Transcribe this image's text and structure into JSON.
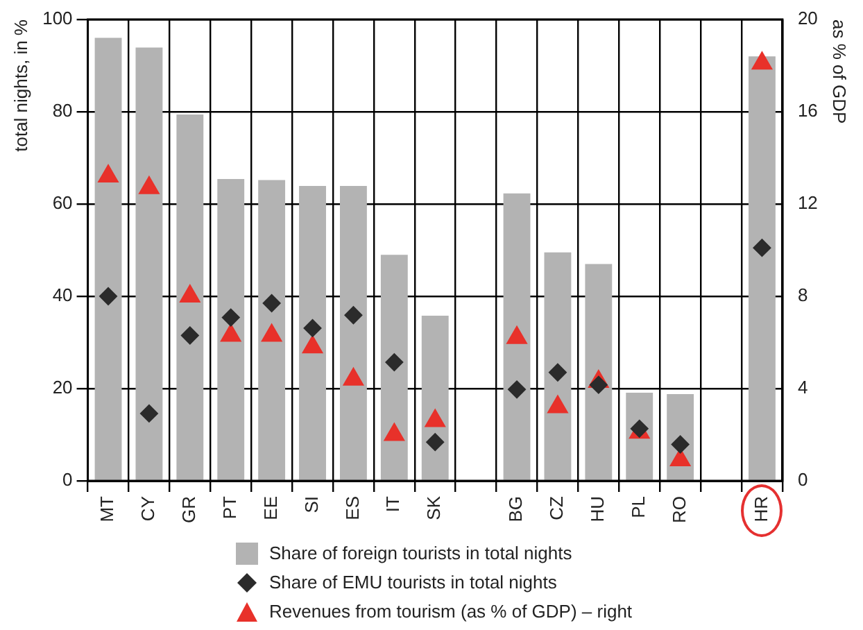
{
  "chart_data": {
    "type": "bar",
    "ylabel": "total nights, in %",
    "y2label": "as % of GDP",
    "categories": [
      "MT",
      "CY",
      "GR",
      "PT",
      "EE",
      "SI",
      "ES",
      "IT",
      "SK",
      null,
      "BG",
      "CZ",
      "HU",
      "PL",
      "RO",
      null,
      "HR"
    ],
    "series": [
      {
        "name": "Share of foreign tourists in total nights",
        "color": "#b3b3b3",
        "values": [
          96,
          93.9,
          79.4,
          65.4,
          65.2,
          63.9,
          63.9,
          49,
          35.8,
          null,
          62.3,
          49.5,
          47,
          19.1,
          18.8,
          null,
          92
        ]
      },
      {
        "name": "Share of EMU tourists in total nights",
        "type": "scatter",
        "marker": "diamond",
        "color": "#2b2b2b",
        "values": [
          40,
          14.6,
          31.5,
          35.4,
          38.5,
          33.1,
          35.9,
          25.7,
          8.4,
          null,
          19.8,
          23.5,
          20.8,
          11.3,
          7.9,
          null,
          50.5
        ]
      },
      {
        "name": "Revenues from tourism (as % of GDP) – right",
        "type": "scatter",
        "marker": "triangle",
        "axis": "y2",
        "color": "#e8312a",
        "values": [
          13.2,
          12.7,
          8,
          6.3,
          6.3,
          5.8,
          4.4,
          2,
          2.6,
          null,
          6.2,
          3.2,
          4.3,
          2.1,
          0.9,
          null,
          18.1
        ]
      }
    ],
    "ylim": [
      0,
      100
    ],
    "yticks": [
      0,
      20,
      40,
      60,
      80,
      100
    ],
    "y2lim": [
      0,
      20
    ],
    "y2ticks": [
      0,
      4,
      8,
      12,
      16,
      20
    ],
    "grid": true,
    "legend": "bottom"
  }
}
